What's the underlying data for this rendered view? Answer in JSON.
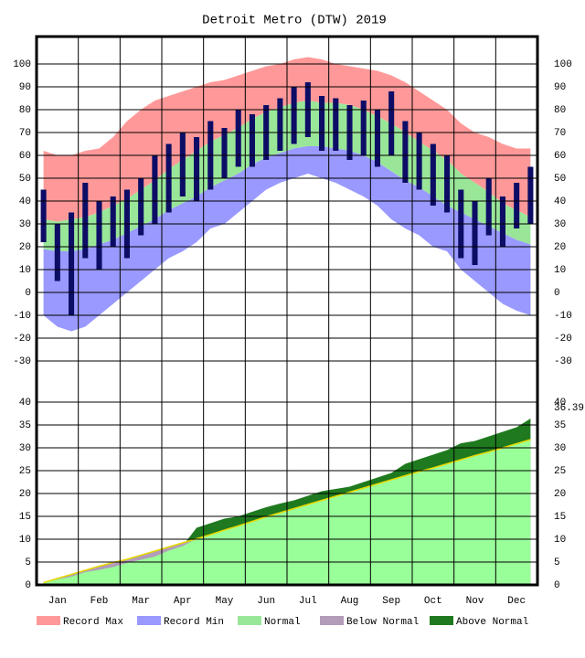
{
  "chart_data": [
    {
      "type": "band",
      "title": "Detroit Metro (DTW) 2019",
      "categories": [
        null,
        "Jan",
        null,
        null,
        "Feb",
        null,
        null,
        "Mar",
        null,
        null,
        "Apr",
        null,
        null,
        "May",
        null,
        null,
        "Jun",
        null,
        null,
        "Jul",
        null,
        null,
        "Aug",
        null,
        null,
        "Sep",
        null,
        null,
        "Oct",
        null,
        null,
        "Nov",
        null,
        null,
        "Dec",
        null
      ],
      "ylim": [
        -38,
        112
      ],
      "yticks": [
        -30,
        -20,
        -10,
        0,
        10,
        20,
        30,
        40,
        50,
        60,
        70,
        80,
        90,
        100
      ],
      "grid": true,
      "series": [
        {
          "name": "Record Max",
          "color": "#ff9999",
          "values": [
            62,
            60,
            60,
            62,
            63,
            68,
            75,
            80,
            84,
            86,
            88,
            90,
            92,
            93,
            95,
            97,
            99,
            100,
            102,
            103,
            102,
            100,
            99,
            98,
            97,
            95,
            92,
            88,
            84,
            80,
            74,
            70,
            68,
            65,
            63,
            63
          ]
        },
        {
          "name": "Record Min",
          "color": "#9999ff",
          "values": [
            -10,
            -15,
            -17,
            -15,
            -10,
            -5,
            0,
            5,
            10,
            15,
            18,
            22,
            28,
            30,
            35,
            40,
            45,
            48,
            50,
            52,
            50,
            48,
            45,
            42,
            38,
            32,
            28,
            25,
            20,
            18,
            10,
            5,
            0,
            -5,
            -8,
            -10
          ]
        },
        {
          "name": "Normal",
          "color": "#99e699",
          "values": [
            32,
            31,
            32,
            33,
            35,
            38,
            41,
            45,
            49,
            54,
            58,
            62,
            66,
            69,
            72,
            76,
            79,
            81,
            83,
            84,
            83,
            83,
            82,
            80,
            77,
            74,
            70,
            66,
            62,
            58,
            52,
            48,
            44,
            39,
            36,
            33
          ],
          "low": [
            19,
            18,
            18,
            19,
            21,
            23,
            26,
            29,
            32,
            36,
            39,
            42,
            46,
            49,
            52,
            56,
            59,
            61,
            63,
            64,
            64,
            63,
            62,
            60,
            57,
            53,
            49,
            46,
            42,
            38,
            35,
            32,
            29,
            26,
            23,
            21
          ]
        }
      ],
      "actual": {
        "color": "#0d0d66",
        "high": [
          45,
          30,
          35,
          48,
          40,
          42,
          45,
          50,
          60,
          65,
          70,
          68,
          75,
          72,
          80,
          78,
          82,
          85,
          90,
          92,
          86,
          85,
          82,
          84,
          80,
          88,
          75,
          70,
          65,
          60,
          45,
          40,
          50,
          42,
          48,
          55
        ],
        "low": [
          22,
          5,
          -10,
          15,
          10,
          20,
          15,
          25,
          30,
          35,
          42,
          40,
          45,
          50,
          55,
          55,
          58,
          62,
          65,
          68,
          62,
          62,
          58,
          60,
          55,
          60,
          48,
          45,
          38,
          35,
          15,
          12,
          25,
          20,
          28,
          30
        ]
      }
    },
    {
      "type": "cumulative",
      "ylim": [
        0,
        45
      ],
      "yticks": [
        0,
        5,
        10,
        15,
        20,
        25,
        30,
        35,
        40
      ],
      "values": [
        0.6,
        1.2,
        1.8,
        2.8,
        3.3,
        3.9,
        4.8,
        5.5,
        6.2,
        7.5,
        8.5,
        12.5,
        13.5,
        14.5,
        15.0,
        16.0,
        17.0,
        17.8,
        18.5,
        19.5,
        20.5,
        21.0,
        21.5,
        22.5,
        23.5,
        24.5,
        26.5,
        27.5,
        28.5,
        29.5,
        31.0,
        31.5,
        32.5,
        33.5,
        34.5,
        36.39
      ],
      "normal": [
        0.5,
        1.4,
        2.3,
        3.2,
        4.1,
        4.9,
        5.6,
        6.5,
        7.4,
        8.3,
        9.2,
        10.1,
        11.0,
        12.0,
        12.9,
        13.9,
        14.9,
        15.8,
        16.7,
        17.6,
        18.5,
        19.4,
        20.3,
        21.2,
        22.1,
        23.0,
        23.9,
        24.8,
        25.6,
        26.5,
        27.4,
        28.3,
        29.1,
        30.0,
        30.9,
        31.8
      ],
      "normal_color": "#99ff99",
      "below_color": "#b39cb9",
      "above_color": "#1f7a1f",
      "line_color": "#e6d800",
      "legend": [
        "Below Normal",
        "Above Normal"
      ]
    }
  ]
}
